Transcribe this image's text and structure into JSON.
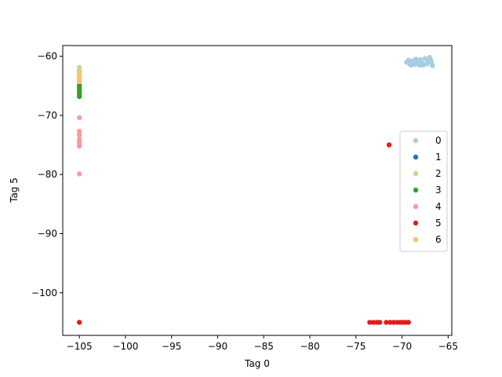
{
  "chart_data": {
    "type": "scatter",
    "xlabel": "Tag 0",
    "ylabel": "Tag 5",
    "xlim": [
      -106.8,
      -64.6
    ],
    "ylim": [
      -107.2,
      -58.2
    ],
    "x_ticks": [
      -105,
      -100,
      -95,
      -90,
      -85,
      -80,
      -75,
      -70,
      -65
    ],
    "y_ticks": [
      -100,
      -90,
      -80,
      -70,
      -60
    ],
    "x_tick_labels": [
      "−105",
      "−100",
      "−95",
      "−90",
      "−85",
      "−80",
      "−75",
      "−70",
      "−65"
    ],
    "y_tick_labels": [
      "−100",
      "−90",
      "−80",
      "−70",
      "−60"
    ],
    "grid": false,
    "legend_position": "center-right",
    "series": [
      {
        "name": "0",
        "color": "#a6cee3",
        "points": [
          [
            -69.5,
            -61.0
          ],
          [
            -69.2,
            -61.3
          ],
          [
            -68.9,
            -60.8
          ],
          [
            -68.6,
            -61.4
          ],
          [
            -68.3,
            -61.0
          ],
          [
            -68.0,
            -60.6
          ],
          [
            -67.8,
            -61.2
          ],
          [
            -67.5,
            -60.4
          ],
          [
            -67.2,
            -60.9
          ],
          [
            -67.0,
            -60.2
          ],
          [
            -66.8,
            -61.1
          ],
          [
            -66.7,
            -61.6
          ],
          [
            -68.5,
            -60.5
          ],
          [
            -67.7,
            -61.5
          ],
          [
            -69.0,
            -61.5
          ],
          [
            -67.3,
            -61.3
          ],
          [
            -66.9,
            -60.6
          ],
          [
            -68.1,
            -61.5
          ],
          [
            -69.3,
            -60.7
          ]
        ]
      },
      {
        "name": "1",
        "color": "#1f78b4",
        "points": []
      },
      {
        "name": "2",
        "color": "#b2df8a",
        "points": [
          [
            -105,
            -61.9
          ],
          [
            -105,
            -62.4
          ],
          [
            -105,
            -62.9
          ],
          [
            -105,
            -63.4
          ]
        ]
      },
      {
        "name": "3",
        "color": "#33a02c",
        "points": [
          [
            -105,
            -64.9
          ],
          [
            -105,
            -65.3
          ],
          [
            -105,
            -65.7
          ],
          [
            -105,
            -66.1
          ],
          [
            -105,
            -66.5
          ],
          [
            -105,
            -66.8
          ]
        ]
      },
      {
        "name": "4",
        "color": "#fb9a99",
        "points": [
          [
            -105,
            -70.4
          ],
          [
            -105,
            -72.7
          ],
          [
            -105,
            -73.3
          ],
          [
            -105,
            -74.0
          ],
          [
            -105,
            -74.4
          ],
          [
            -105,
            -74.8
          ],
          [
            -105,
            -75.2
          ],
          [
            -105,
            -79.9
          ]
        ]
      },
      {
        "name": "5",
        "color": "#e31a1c",
        "points": [
          [
            -71.4,
            -75.0
          ],
          [
            -105,
            -105.0
          ],
          [
            -73.5,
            -105.0
          ],
          [
            -73.1,
            -105.0
          ],
          [
            -72.7,
            -105.0
          ],
          [
            -72.4,
            -105.0
          ],
          [
            -71.7,
            -105.0
          ],
          [
            -71.3,
            -105.0
          ],
          [
            -70.9,
            -105.0
          ],
          [
            -70.5,
            -105.0
          ],
          [
            -70.2,
            -105.0
          ],
          [
            -69.9,
            -105.0
          ],
          [
            -69.6,
            -105.0
          ],
          [
            -69.3,
            -105.0
          ]
        ]
      },
      {
        "name": "6",
        "color": "#fdbf6f",
        "points": [
          [
            -105,
            -62.6
          ],
          [
            -105,
            -63.1
          ],
          [
            -105,
            -63.6
          ],
          [
            -105,
            -64.0
          ],
          [
            -105,
            -64.3
          ]
        ]
      }
    ]
  }
}
